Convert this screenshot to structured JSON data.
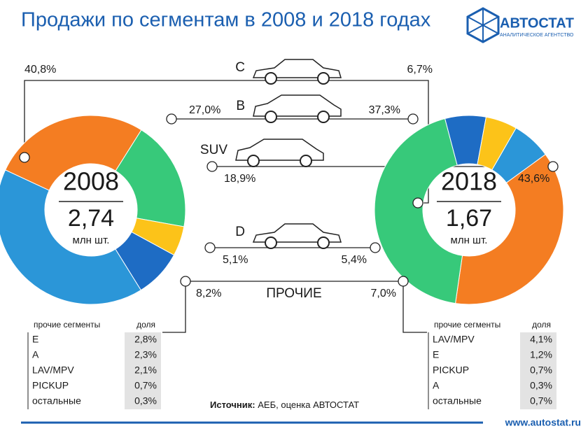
{
  "header": {
    "title": "Продажи по сегментам в 2008 и 2018 годах",
    "logo": "АВТОСТАТ",
    "logo_sub": "АНАЛИТИЧЕСКОЕ АГЕНТСТВО"
  },
  "chart_data": {
    "type": "donut",
    "categories": [
      "C",
      "B",
      "SUV",
      "D",
      "ПРОЧИЕ"
    ],
    "colors": [
      "#2b96d8",
      "#f47d22",
      "#37c97a",
      "#fcc319",
      "#1e6cc4"
    ],
    "unit": "млн шт.",
    "series": [
      {
        "name": "2008",
        "total": "2,74",
        "values": [
          40.8,
          27.0,
          18.9,
          5.1,
          8.2
        ],
        "value_labels": [
          "40,8%",
          "27,0%",
          "18,9%",
          "5,1%",
          "8,2%"
        ]
      },
      {
        "name": "2018",
        "total": "1,67",
        "values": [
          6.7,
          37.3,
          43.6,
          5.4,
          7.0
        ],
        "value_labels": [
          "6,7%",
          "37,3%",
          "43,6%",
          "5,4%",
          "7,0%"
        ]
      }
    ]
  },
  "tables": [
    {
      "header": [
        "прочие сегменты",
        "доля"
      ],
      "rows": [
        [
          "E",
          "2,8%"
        ],
        [
          "A",
          "2,3%"
        ],
        [
          "LAV/MPV",
          "2,1%"
        ],
        [
          "PICKUP",
          "0,7%"
        ],
        [
          "остальные",
          "0,3%"
        ]
      ]
    },
    {
      "header": [
        "прочие сегменты",
        "доля"
      ],
      "rows": [
        [
          "LAV/MPV",
          "4,1%"
        ],
        [
          "E",
          "1,2%"
        ],
        [
          "PICKUP",
          "0,7%"
        ],
        [
          "A",
          "0,3%"
        ],
        [
          "остальные",
          "0,7%"
        ]
      ]
    }
  ],
  "footer": {
    "source_label": "Источник:",
    "source": "АЕБ, оценка АВТОСТАТ",
    "url": "www.autostat.ru"
  }
}
